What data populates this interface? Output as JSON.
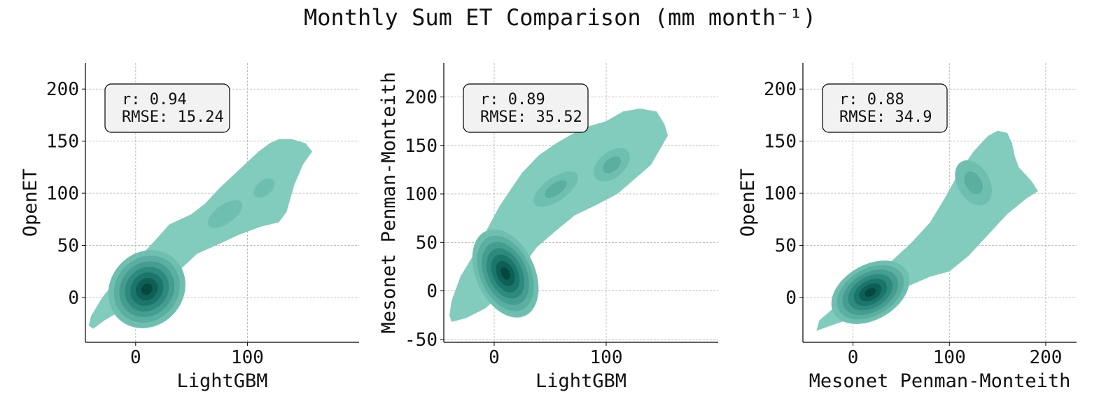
{
  "title": "Monthly Sum ET Comparison (mm month⁻¹)",
  "colors": {
    "levels": [
      "#82ccbd",
      "#6fbfb0",
      "#5aafa1",
      "#449d90",
      "#2f8a7e",
      "#1b756a",
      "#0e5f56",
      "#054840"
    ],
    "stats_box_bg": "#f2f2f2",
    "grid": "#b0b0b0"
  },
  "chart_data": [
    {
      "type": "kde",
      "xlabel": "LightGBM",
      "ylabel": "OpenET",
      "xlim": [
        -45,
        200
      ],
      "ylim": [
        -43,
        225
      ],
      "xticks": [
        0,
        100
      ],
      "yticks": [
        0,
        50,
        100,
        150,
        200
      ],
      "grid": true,
      "stats": {
        "r": "r: 0.94",
        "rmse": "RMSE: 15.24"
      },
      "outer_contour": [
        [
          -38,
          -30
        ],
        [
          -28,
          -22
        ],
        [
          -12,
          -12
        ],
        [
          5,
          -2
        ],
        [
          20,
          10
        ],
        [
          38,
          25
        ],
        [
          55,
          42
        ],
        [
          72,
          50
        ],
        [
          92,
          60
        ],
        [
          112,
          68
        ],
        [
          128,
          72
        ],
        [
          135,
          82
        ],
        [
          142,
          108
        ],
        [
          150,
          128
        ],
        [
          158,
          140
        ],
        [
          152,
          148
        ],
        [
          140,
          152
        ],
        [
          128,
          152
        ],
        [
          120,
          148
        ],
        [
          110,
          140
        ],
        [
          100,
          130
        ],
        [
          85,
          115
        ],
        [
          75,
          105
        ],
        [
          62,
          90
        ],
        [
          50,
          80
        ],
        [
          42,
          76
        ],
        [
          30,
          70
        ],
        [
          15,
          52
        ],
        [
          0,
          35
        ],
        [
          -15,
          20
        ],
        [
          -30,
          0
        ],
        [
          -40,
          -18
        ],
        [
          -42,
          -27
        ]
      ],
      "peaks": [
        {
          "cx": 10,
          "cy": 8,
          "sx": 42,
          "sy": 40,
          "angle": 48,
          "levels": 8
        },
        {
          "cx": 80,
          "cy": 80,
          "sx": 36,
          "sy": 18,
          "angle": 35,
          "levels": 2
        },
        {
          "cx": 115,
          "cy": 105,
          "sx": 22,
          "sy": 14,
          "angle": 40,
          "levels": 2
        }
      ]
    },
    {
      "type": "kde",
      "xlabel": "LightGBM",
      "ylabel": "Mesonet Penman-Monteith",
      "xlim": [
        -45,
        200
      ],
      "ylim": [
        -53,
        235
      ],
      "xticks": [
        0,
        100
      ],
      "yticks": [
        -50,
        0,
        50,
        100,
        150,
        200
      ],
      "grid": true,
      "stats": {
        "r": "r: 0.89",
        "rmse": "RMSE: 35.52"
      },
      "outer_contour": [
        [
          -38,
          -32
        ],
        [
          -25,
          -28
        ],
        [
          -8,
          -18
        ],
        [
          10,
          0
        ],
        [
          22,
          20
        ],
        [
          38,
          45
        ],
        [
          55,
          62
        ],
        [
          72,
          78
        ],
        [
          90,
          88
        ],
        [
          110,
          100
        ],
        [
          125,
          115
        ],
        [
          140,
          130
        ],
        [
          150,
          150
        ],
        [
          155,
          160
        ],
        [
          152,
          172
        ],
        [
          145,
          185
        ],
        [
          130,
          188
        ],
        [
          115,
          185
        ],
        [
          100,
          175
        ],
        [
          85,
          170
        ],
        [
          70,
          162
        ],
        [
          55,
          152
        ],
        [
          40,
          140
        ],
        [
          25,
          122
        ],
        [
          15,
          105
        ],
        [
          5,
          88
        ],
        [
          -8,
          60
        ],
        [
          -18,
          38
        ],
        [
          -30,
          15
        ],
        [
          -38,
          -10
        ],
        [
          -40,
          -25
        ]
      ],
      "peaks": [
        {
          "cx": 10,
          "cy": 18,
          "sx": 30,
          "sy": 55,
          "angle": 25,
          "levels": 8
        },
        {
          "cx": 55,
          "cy": 105,
          "sx": 35,
          "sy": 18,
          "angle": 35,
          "levels": 3
        },
        {
          "cx": 105,
          "cy": 130,
          "sx": 28,
          "sy": 20,
          "angle": 40,
          "levels": 3
        }
      ]
    },
    {
      "type": "kde",
      "xlabel": "Mesonet Penman-Monteith",
      "ylabel": "OpenET",
      "xlim": [
        -52,
        232
      ],
      "ylim": [
        -43,
        225
      ],
      "xticks": [
        0,
        100,
        200
      ],
      "yticks": [
        0,
        50,
        100,
        150,
        200
      ],
      "grid": true,
      "stats": {
        "r": "r: 0.88",
        "rmse": "RMSE: 34.9"
      },
      "outer_contour": [
        [
          -38,
          -32
        ],
        [
          -20,
          -26
        ],
        [
          5,
          -18
        ],
        [
          30,
          -5
        ],
        [
          55,
          10
        ],
        [
          80,
          20
        ],
        [
          100,
          25
        ],
        [
          120,
          40
        ],
        [
          140,
          60
        ],
        [
          160,
          80
        ],
        [
          180,
          95
        ],
        [
          192,
          102
        ],
        [
          185,
          112
        ],
        [
          172,
          125
        ],
        [
          168,
          135
        ],
        [
          165,
          148
        ],
        [
          160,
          158
        ],
        [
          150,
          160
        ],
        [
          140,
          155
        ],
        [
          125,
          140
        ],
        [
          110,
          120
        ],
        [
          95,
          95
        ],
        [
          80,
          72
        ],
        [
          60,
          52
        ],
        [
          40,
          35
        ],
        [
          20,
          20
        ],
        [
          0,
          5
        ],
        [
          -20,
          -10
        ],
        [
          -35,
          -22
        ]
      ],
      "peaks": [
        {
          "cx": 18,
          "cy": 5,
          "sx": 50,
          "sy": 30,
          "angle": 30,
          "levels": 8
        },
        {
          "cx": 125,
          "cy": 110,
          "sx": 25,
          "sy": 35,
          "angle": 30,
          "levels": 3
        }
      ]
    }
  ]
}
